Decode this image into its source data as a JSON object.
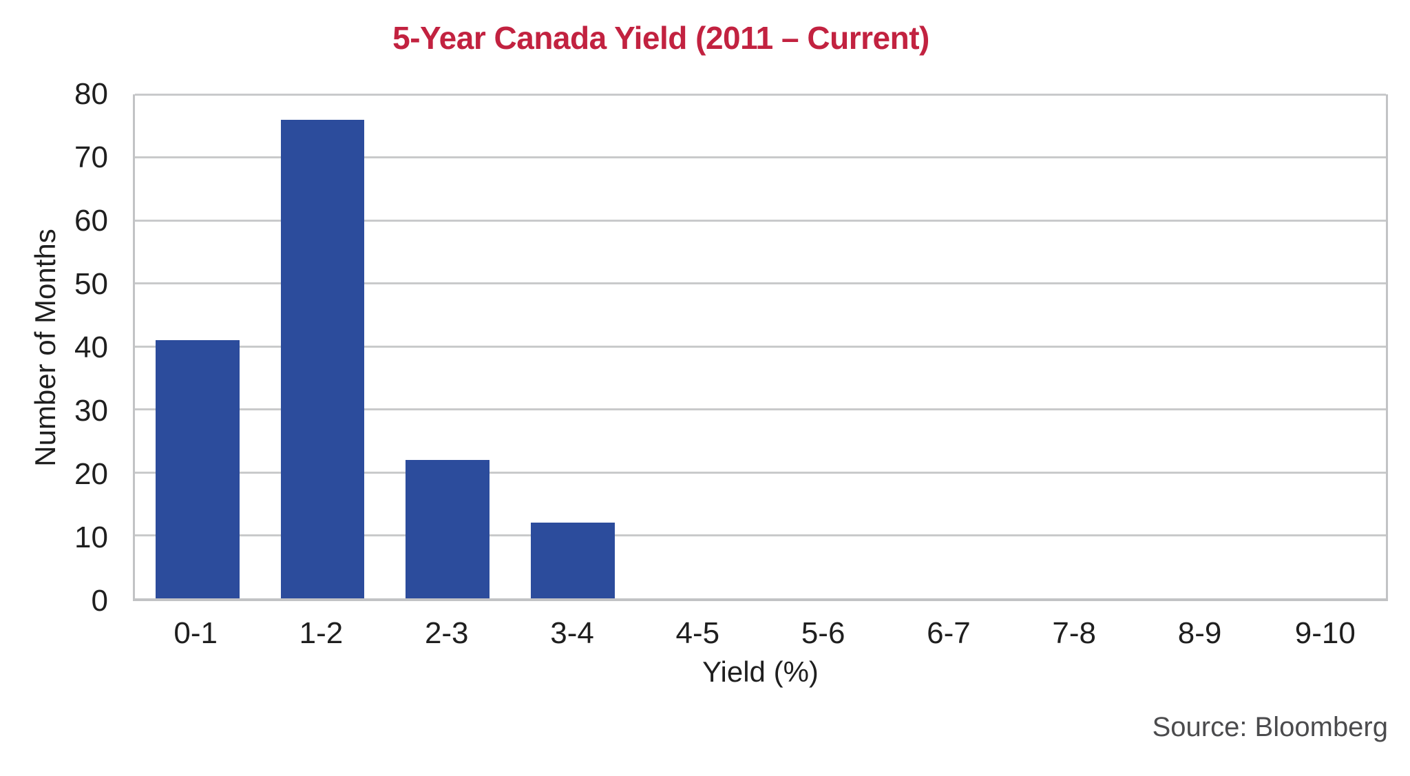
{
  "chart_data": {
    "type": "bar",
    "title": "5-Year Canada Yield (2011 – Current)",
    "categories": [
      "0-1",
      "1-2",
      "2-3",
      "3-4",
      "4-5",
      "5-6",
      "6-7",
      "7-8",
      "8-9",
      "9-10"
    ],
    "values": [
      41,
      76,
      22,
      12,
      0,
      0,
      0,
      0,
      0,
      0
    ],
    "xlabel": "Yield (%)",
    "ylabel": "Number of Months",
    "ylim": [
      0,
      80
    ],
    "yticks": [
      0,
      10,
      20,
      30,
      40,
      50,
      60,
      70,
      80
    ],
    "grid": "horizontal",
    "legend": "none",
    "bar_color": "#2C4C9C",
    "gridline_color": "#C9CACB",
    "axis_line_color": "#C2C3C5",
    "title_color": "#C22240",
    "text_color": "#1F1F1F",
    "source_color": "#4B4B4D"
  },
  "footer": {
    "source_label": "Source: Bloomberg"
  }
}
